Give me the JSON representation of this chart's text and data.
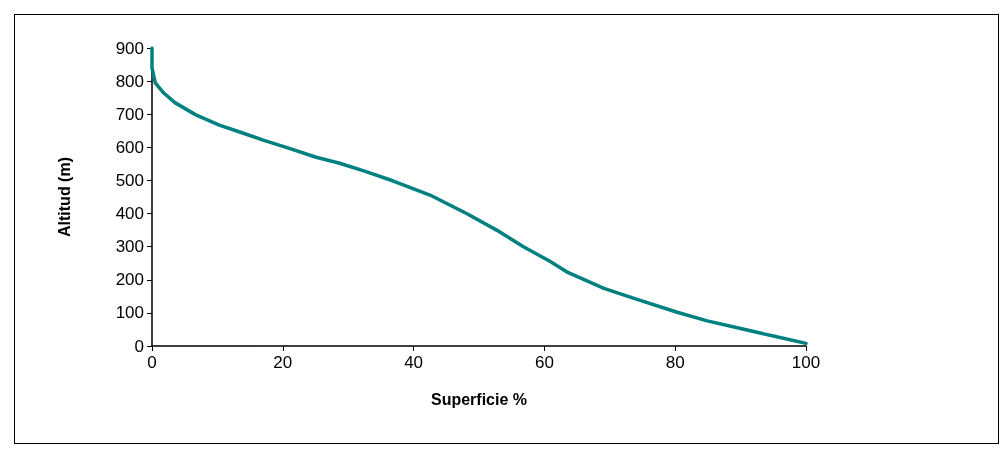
{
  "chart_data": {
    "type": "line",
    "xlabel": "Superficie %",
    "ylabel": "Altitud (m)",
    "x": [
      0,
      0,
      0.5,
      1.8,
      3.5,
      6.7,
      10.3,
      13.3,
      17,
      21,
      25.1,
      28.7,
      32.5,
      36.8,
      42.5,
      48.1,
      52.7,
      56.8,
      60.9,
      63.4,
      66,
      69.1,
      73.7,
      80.3,
      84.9,
      90,
      95,
      100
    ],
    "series": [
      {
        "color": "#008080",
        "values": [
          900,
          840,
          795,
          764,
          735,
          698,
          667,
          647,
          622,
          597,
          570,
          552,
          528,
          499,
          456,
          400,
          350,
          300,
          255,
          224,
          201,
          174,
          144,
          102,
          76,
          53,
          30,
          8
        ]
      }
    ],
    "xlim": [
      0,
      100
    ],
    "xticks": [
      0,
      20,
      40,
      60,
      80,
      100
    ],
    "ylim": [
      0,
      900
    ],
    "yticks": [
      0,
      100,
      200,
      300,
      400,
      500,
      600,
      700,
      800,
      900
    ],
    "grid": false,
    "marker": "none",
    "line_style": "solid"
  }
}
